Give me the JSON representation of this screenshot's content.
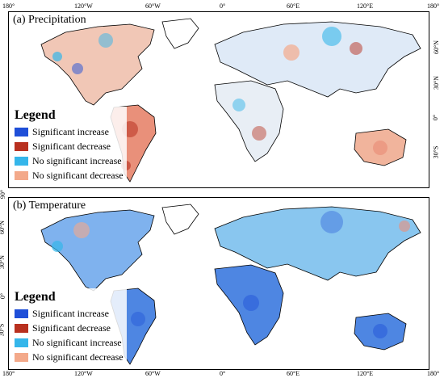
{
  "panels": [
    {
      "id": "a",
      "title": "(a) Precipitation"
    },
    {
      "id": "b",
      "title": "(b) Temperature"
    }
  ],
  "legend": {
    "title": "Legend",
    "items": [
      {
        "label": "Significant increase",
        "color": "#1f4fd8"
      },
      {
        "label": "Significant decrease",
        "color": "#b8301f"
      },
      {
        "label": "No significant increase",
        "color": "#35b6ea"
      },
      {
        "label": "No significant decrease",
        "color": "#f3a98a"
      }
    ]
  },
  "axes": {
    "lon_labels": [
      "180°",
      "120°W",
      "60°W",
      "0°",
      "60°E",
      "120°E",
      "180°"
    ],
    "lat_labels": [
      "90°",
      "60°N",
      "30°N",
      "0°",
      "30°S"
    ]
  },
  "colors": {
    "coast": "#000000",
    "land_base": "#ffffff"
  }
}
